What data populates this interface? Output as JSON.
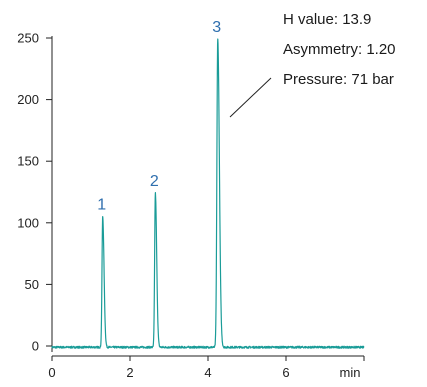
{
  "chart_data": {
    "type": "line",
    "title": "",
    "xlabel": "",
    "ylabel": "",
    "x_unit": "min",
    "xlim": [
      0,
      8
    ],
    "ylim": [
      -8,
      258
    ],
    "x_ticks": [
      0,
      2,
      4,
      6
    ],
    "y_ticks": [
      0,
      50,
      100,
      150,
      200,
      250
    ],
    "grid": false,
    "legend": "none",
    "line_color": "#1a9c98",
    "baseline": -1,
    "peaks": [
      {
        "label": "1",
        "x": 1.3,
        "height": 106,
        "width": 0.018
      },
      {
        "label": "2",
        "x": 2.65,
        "height": 125,
        "width": 0.018
      },
      {
        "label": "3",
        "x": 4.25,
        "height": 250,
        "width": 0.022
      }
    ],
    "annotations": [
      "H value: 13.9",
      "Asymmetry: 1.20",
      "Pressure: 71 bar"
    ]
  },
  "colors": {
    "trace": "#1a9c98",
    "peak_label": "#2f6fae",
    "axis": "#222222"
  }
}
